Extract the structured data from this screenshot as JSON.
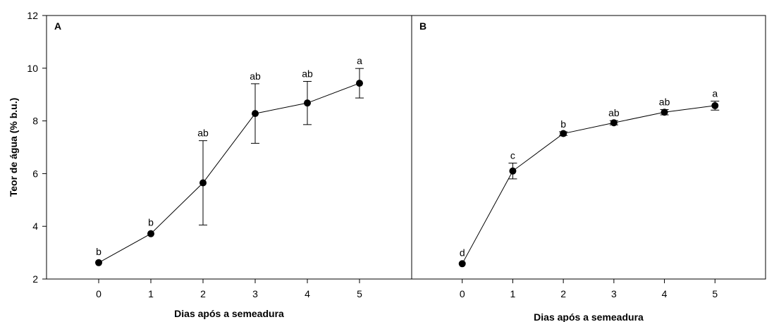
{
  "chart_data": [
    {
      "type": "line",
      "panel_label": "A",
      "xlabel": "Dias após a semeadura",
      "ylabel": "Teor de água (% b.u.)",
      "x": [
        0,
        1,
        2,
        3,
        4,
        5
      ],
      "x_ticks": [
        "0",
        "1",
        "2",
        "3",
        "4",
        "5"
      ],
      "xlim": [
        -1,
        6
      ],
      "ylim": [
        2,
        12
      ],
      "y_ticks": [
        "2",
        "4",
        "6",
        "8",
        "10",
        "12"
      ],
      "values": [
        2.62,
        3.72,
        5.65,
        8.28,
        8.68,
        9.43
      ],
      "error": [
        0.0,
        0.0,
        1.6,
        1.13,
        0.82,
        0.56
      ],
      "letters": [
        "b",
        "b",
        "ab",
        "ab",
        "ab",
        "a"
      ],
      "grid": false
    },
    {
      "type": "line",
      "panel_label": "B",
      "xlabel": "Dias após a semeadura",
      "ylabel": "",
      "x": [
        0,
        1,
        2,
        3,
        4,
        5
      ],
      "x_ticks": [
        "0",
        "1",
        "2",
        "3",
        "4",
        "5"
      ],
      "xlim": [
        -1,
        6
      ],
      "ylim": [
        2,
        12
      ],
      "values": [
        2.58,
        6.1,
        7.52,
        7.93,
        8.33,
        8.58
      ],
      "error": [
        0.0,
        0.3,
        0.07,
        0.08,
        0.1,
        0.17
      ],
      "letters": [
        "d",
        "c",
        "b",
        "ab",
        "ab",
        "a"
      ],
      "grid": false
    }
  ]
}
